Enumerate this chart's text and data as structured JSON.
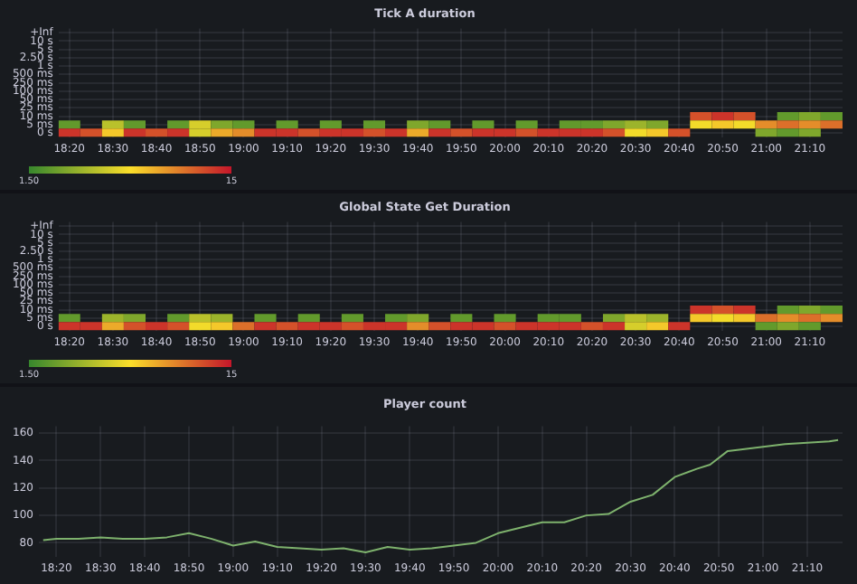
{
  "chart_data": [
    {
      "type": "heatmap",
      "title": "Tick A duration",
      "x": [
        18.3333,
        18.4167,
        18.5,
        18.5833,
        18.6667,
        18.75,
        18.8333,
        18.9167,
        19,
        19.0833,
        19.1667,
        19.25,
        19.3333,
        19.4167,
        19.5,
        19.5833,
        19.6667,
        19.75,
        19.8333,
        19.9167,
        20,
        20.0833,
        20.1667,
        20.25,
        20.3333,
        20.4167,
        20.5,
        20.5833,
        20.6667,
        20.75,
        20.8333,
        20.9167,
        21,
        21.0833,
        21.1667,
        21.25
      ],
      "y_categories": [
        "+Inf",
        "10 s",
        "5 s",
        "2.50 s",
        "1 s",
        "500 ms",
        "250 ms",
        "100 ms",
        "50 ms",
        "25 ms",
        "10 ms",
        "5 ms",
        "0 s"
      ],
      "cells": [
        [
          null,
          null,
          null,
          null,
          null,
          null,
          null,
          null,
          null,
          null,
          null,
          null,
          null,
          null,
          null,
          null,
          null,
          null,
          null,
          null,
          null,
          null,
          null,
          null,
          null,
          null,
          null,
          null,
          null,
          null,
          null,
          null,
          null,
          null,
          null,
          null
        ],
        [
          null,
          null,
          null,
          null,
          null,
          null,
          null,
          null,
          null,
          null,
          null,
          null,
          null,
          null,
          null,
          null,
          null,
          null,
          null,
          null,
          null,
          null,
          null,
          null,
          null,
          null,
          null,
          null,
          null,
          null,
          null,
          null,
          null,
          null,
          null,
          null
        ],
        [
          null,
          null,
          null,
          null,
          null,
          null,
          null,
          null,
          null,
          null,
          null,
          null,
          null,
          null,
          null,
          null,
          null,
          null,
          null,
          null,
          null,
          null,
          null,
          null,
          null,
          null,
          null,
          null,
          null,
          null,
          null,
          null,
          null,
          null,
          null,
          null
        ],
        [
          null,
          null,
          null,
          null,
          null,
          null,
          null,
          null,
          null,
          null,
          null,
          null,
          null,
          null,
          null,
          null,
          null,
          null,
          null,
          null,
          null,
          null,
          null,
          null,
          null,
          null,
          null,
          null,
          null,
          null,
          null,
          null,
          null,
          null,
          null,
          null
        ],
        [
          null,
          null,
          null,
          null,
          null,
          null,
          null,
          null,
          null,
          null,
          null,
          null,
          null,
          null,
          null,
          null,
          null,
          null,
          null,
          null,
          null,
          null,
          null,
          null,
          null,
          null,
          null,
          null,
          null,
          null,
          null,
          null,
          null,
          null,
          null,
          null
        ],
        [
          null,
          null,
          null,
          null,
          null,
          null,
          null,
          null,
          null,
          null,
          null,
          null,
          null,
          null,
          null,
          null,
          null,
          null,
          null,
          null,
          null,
          null,
          null,
          null,
          null,
          null,
          null,
          null,
          null,
          null,
          null,
          null,
          null,
          null,
          null,
          null
        ],
        [
          null,
          null,
          null,
          null,
          null,
          null,
          null,
          null,
          null,
          null,
          null,
          null,
          null,
          null,
          null,
          null,
          null,
          null,
          null,
          null,
          null,
          null,
          null,
          null,
          null,
          null,
          null,
          null,
          null,
          null,
          null,
          null,
          null,
          null,
          null,
          null
        ],
        [
          null,
          null,
          null,
          null,
          null,
          null,
          null,
          null,
          null,
          null,
          null,
          null,
          null,
          null,
          null,
          null,
          null,
          null,
          null,
          null,
          null,
          null,
          null,
          null,
          null,
          null,
          null,
          null,
          null,
          null,
          null,
          null,
          null,
          null,
          null,
          null
        ],
        [
          null,
          null,
          null,
          null,
          null,
          null,
          null,
          null,
          null,
          null,
          null,
          null,
          null,
          null,
          null,
          null,
          null,
          null,
          null,
          null,
          null,
          null,
          null,
          null,
          null,
          null,
          null,
          null,
          null,
          null,
          null,
          null,
          null,
          null,
          null,
          null
        ],
        [
          null,
          null,
          null,
          null,
          null,
          null,
          null,
          null,
          null,
          null,
          null,
          null,
          null,
          null,
          null,
          null,
          null,
          null,
          null,
          null,
          null,
          null,
          null,
          null,
          null,
          null,
          null,
          null,
          null,
          null,
          null,
          null,
          null,
          null,
          null,
          null
        ],
        [
          null,
          null,
          null,
          null,
          null,
          null,
          null,
          null,
          null,
          null,
          null,
          null,
          null,
          null,
          null,
          null,
          null,
          null,
          null,
          null,
          null,
          null,
          null,
          null,
          null,
          null,
          null,
          null,
          null,
          13,
          14,
          13,
          null,
          3,
          4,
          3
        ],
        [
          3,
          null,
          6,
          3,
          null,
          3,
          7,
          4,
          3,
          null,
          3,
          null,
          3,
          null,
          3,
          null,
          4,
          3,
          null,
          3,
          null,
          3,
          null,
          3,
          3,
          4,
          5,
          4,
          null,
          8,
          9,
          8,
          11,
          12,
          11,
          12
        ],
        [
          14,
          13,
          9,
          14,
          13,
          14,
          7,
          10,
          11,
          14,
          14,
          13,
          14,
          14,
          13,
          14,
          10,
          14,
          13,
          14,
          14,
          13,
          14,
          14,
          14,
          13,
          8,
          9,
          13,
          null,
          null,
          null,
          4,
          3,
          4,
          null
        ]
      ],
      "clim": [
        1.5,
        15
      ],
      "cticks": [
        {
          "value": 1.5,
          "label": "1.50"
        },
        15
      ],
      "xlim": [
        18.2917,
        21.2917
      ],
      "xticks": [
        {
          "value": 18.3333,
          "label": "18:20"
        },
        {
          "value": 18.5,
          "label": "18:30"
        },
        {
          "value": 18.6667,
          "label": "18:40"
        },
        {
          "value": 18.8333,
          "label": "18:50"
        },
        {
          "value": 19,
          "label": "19:00"
        },
        {
          "value": 19.1667,
          "label": "19:10"
        },
        {
          "value": 19.3333,
          "label": "19:20"
        },
        {
          "value": 19.5,
          "label": "19:30"
        },
        {
          "value": 19.6667,
          "label": "19:40"
        },
        {
          "value": 19.8333,
          "label": "19:50"
        },
        {
          "value": 20,
          "label": "20:00"
        },
        {
          "value": 20.1667,
          "label": "20:10"
        },
        {
          "value": 20.3333,
          "label": "20:20"
        },
        {
          "value": 20.5,
          "label": "20:30"
        },
        {
          "value": 20.6667,
          "label": "20:40"
        },
        {
          "value": 20.8333,
          "label": "20:50"
        },
        {
          "value": 21,
          "label": "21:00"
        },
        {
          "value": 21.1667,
          "label": "21:10"
        }
      ],
      "grid": true
    },
    {
      "type": "heatmap",
      "title": "Global State Get Duration",
      "x": [
        18.3333,
        18.4167,
        18.5,
        18.5833,
        18.6667,
        18.75,
        18.8333,
        18.9167,
        19,
        19.0833,
        19.1667,
        19.25,
        19.3333,
        19.4167,
        19.5,
        19.5833,
        19.6667,
        19.75,
        19.8333,
        19.9167,
        20,
        20.0833,
        20.1667,
        20.25,
        20.3333,
        20.4167,
        20.5,
        20.5833,
        20.6667,
        20.75,
        20.8333,
        20.9167,
        21,
        21.0833,
        21.1667,
        21.25
      ],
      "y_categories": [
        "+Inf",
        "10 s",
        "5 s",
        "2.50 s",
        "1 s",
        "500 ms",
        "250 ms",
        "100 ms",
        "50 ms",
        "25 ms",
        "10 ms",
        "5 ms",
        "0 s"
      ],
      "cells": [
        [
          null,
          null,
          null,
          null,
          null,
          null,
          null,
          null,
          null,
          null,
          null,
          null,
          null,
          null,
          null,
          null,
          null,
          null,
          null,
          null,
          null,
          null,
          null,
          null,
          null,
          null,
          null,
          null,
          null,
          null,
          null,
          null,
          null,
          null,
          null,
          null
        ],
        [
          null,
          null,
          null,
          null,
          null,
          null,
          null,
          null,
          null,
          null,
          null,
          null,
          null,
          null,
          null,
          null,
          null,
          null,
          null,
          null,
          null,
          null,
          null,
          null,
          null,
          null,
          null,
          null,
          null,
          null,
          null,
          null,
          null,
          null,
          null,
          null
        ],
        [
          null,
          null,
          null,
          null,
          null,
          null,
          null,
          null,
          null,
          null,
          null,
          null,
          null,
          null,
          null,
          null,
          null,
          null,
          null,
          null,
          null,
          null,
          null,
          null,
          null,
          null,
          null,
          null,
          null,
          null,
          null,
          null,
          null,
          null,
          null,
          null
        ],
        [
          null,
          null,
          null,
          null,
          null,
          null,
          null,
          null,
          null,
          null,
          null,
          null,
          null,
          null,
          null,
          null,
          null,
          null,
          null,
          null,
          null,
          null,
          null,
          null,
          null,
          null,
          null,
          null,
          null,
          null,
          null,
          null,
          null,
          null,
          null,
          null
        ],
        [
          null,
          null,
          null,
          null,
          null,
          null,
          null,
          null,
          null,
          null,
          null,
          null,
          null,
          null,
          null,
          null,
          null,
          null,
          null,
          null,
          null,
          null,
          null,
          null,
          null,
          null,
          null,
          null,
          null,
          null,
          null,
          null,
          null,
          null,
          null,
          null
        ],
        [
          null,
          null,
          null,
          null,
          null,
          null,
          null,
          null,
          null,
          null,
          null,
          null,
          null,
          null,
          null,
          null,
          null,
          null,
          null,
          null,
          null,
          null,
          null,
          null,
          null,
          null,
          null,
          null,
          null,
          null,
          null,
          null,
          null,
          null,
          null,
          null
        ],
        [
          null,
          null,
          null,
          null,
          null,
          null,
          null,
          null,
          null,
          null,
          null,
          null,
          null,
          null,
          null,
          null,
          null,
          null,
          null,
          null,
          null,
          null,
          null,
          null,
          null,
          null,
          null,
          null,
          null,
          null,
          null,
          null,
          null,
          null,
          null,
          null
        ],
        [
          null,
          null,
          null,
          null,
          null,
          null,
          null,
          null,
          null,
          null,
          null,
          null,
          null,
          null,
          null,
          null,
          null,
          null,
          null,
          null,
          null,
          null,
          null,
          null,
          null,
          null,
          null,
          null,
          null,
          null,
          null,
          null,
          null,
          null,
          null,
          null
        ],
        [
          null,
          null,
          null,
          null,
          null,
          null,
          null,
          null,
          null,
          null,
          null,
          null,
          null,
          null,
          null,
          null,
          null,
          null,
          null,
          null,
          null,
          null,
          null,
          null,
          null,
          null,
          null,
          null,
          null,
          null,
          null,
          null,
          null,
          null,
          null,
          null
        ],
        [
          null,
          null,
          null,
          null,
          null,
          null,
          null,
          null,
          null,
          null,
          null,
          null,
          null,
          null,
          null,
          null,
          null,
          null,
          null,
          null,
          null,
          null,
          null,
          null,
          null,
          null,
          null,
          null,
          null,
          null,
          null,
          null,
          null,
          null,
          null,
          null
        ],
        [
          null,
          null,
          null,
          null,
          null,
          null,
          null,
          null,
          null,
          null,
          null,
          null,
          null,
          null,
          null,
          null,
          null,
          null,
          null,
          null,
          null,
          null,
          null,
          null,
          null,
          null,
          null,
          null,
          null,
          14,
          13,
          14,
          null,
          3,
          4,
          3
        ],
        [
          3,
          null,
          5,
          4,
          null,
          3,
          6,
          5,
          null,
          3,
          null,
          3,
          null,
          3,
          null,
          3,
          4,
          null,
          3,
          null,
          3,
          null,
          3,
          3,
          null,
          4,
          6,
          5,
          null,
          9,
          8,
          9,
          12,
          11,
          12,
          11
        ],
        [
          14,
          14,
          10,
          13,
          14,
          13,
          8,
          9,
          12,
          14,
          13,
          14,
          14,
          13,
          14,
          14,
          11,
          13,
          14,
          14,
          13,
          14,
          14,
          14,
          13,
          14,
          7,
          9,
          14,
          null,
          null,
          null,
          3,
          4,
          3,
          null
        ]
      ],
      "clim": [
        1.5,
        15
      ],
      "cticks": [
        {
          "value": 1.5,
          "label": "1.50"
        },
        15
      ],
      "xlim": [
        18.2917,
        21.2917
      ],
      "xticks": [
        {
          "value": 18.3333,
          "label": "18:20"
        },
        {
          "value": 18.5,
          "label": "18:30"
        },
        {
          "value": 18.6667,
          "label": "18:40"
        },
        {
          "value": 18.8333,
          "label": "18:50"
        },
        {
          "value": 19,
          "label": "19:00"
        },
        {
          "value": 19.1667,
          "label": "19:10"
        },
        {
          "value": 19.3333,
          "label": "19:20"
        },
        {
          "value": 19.5,
          "label": "19:30"
        },
        {
          "value": 19.6667,
          "label": "19:40"
        },
        {
          "value": 19.8333,
          "label": "19:50"
        },
        {
          "value": 20,
          "label": "20:00"
        },
        {
          "value": 20.1667,
          "label": "20:10"
        },
        {
          "value": 20.3333,
          "label": "20:20"
        },
        {
          "value": 20.5,
          "label": "20:30"
        },
        {
          "value": 20.6667,
          "label": "20:40"
        },
        {
          "value": 20.8333,
          "label": "20:50"
        },
        {
          "value": 21,
          "label": "21:00"
        },
        {
          "value": 21.1667,
          "label": "21:10"
        }
      ],
      "grid": true
    },
    {
      "type": "line",
      "title": "Player count",
      "series": [
        {
          "color": "#7eb26d",
          "x": [
            18.2833,
            18.3333,
            18.4167,
            18.5,
            18.5833,
            18.6667,
            18.75,
            18.8333,
            18.9167,
            19,
            19.0833,
            19.1667,
            19.25,
            19.3333,
            19.4167,
            19.5,
            19.5833,
            19.6667,
            19.75,
            19.8333,
            19.9167,
            20,
            20.0833,
            20.1667,
            20.25,
            20.3333,
            20.4167,
            20.5,
            20.5833,
            20.6667,
            20.75,
            20.8,
            20.8667,
            20.9167,
            21,
            21.0833,
            21.1667,
            21.25,
            21.2833
          ],
          "values": [
            82,
            83,
            83,
            84,
            83,
            83,
            84,
            87,
            83,
            78,
            81,
            77,
            76,
            75,
            76,
            73,
            77,
            75,
            76,
            78,
            80,
            87,
            91,
            95,
            95,
            100,
            101,
            110,
            115,
            128,
            134,
            137,
            147,
            148,
            150,
            152,
            153,
            154,
            155
          ]
        }
      ],
      "xlim": [
        18.2667,
        21.3
      ],
      "ylim": [
        70,
        165
      ],
      "yticks": [
        80,
        100,
        120,
        140,
        160
      ],
      "xticks": [
        {
          "value": 18.3333,
          "label": "18:20"
        },
        {
          "value": 18.5,
          "label": "18:30"
        },
        {
          "value": 18.6667,
          "label": "18:40"
        },
        {
          "value": 18.8333,
          "label": "18:50"
        },
        {
          "value": 19,
          "label": "19:00"
        },
        {
          "value": 19.1667,
          "label": "19:10"
        },
        {
          "value": 19.3333,
          "label": "19:20"
        },
        {
          "value": 19.5,
          "label": "19:30"
        },
        {
          "value": 19.6667,
          "label": "19:40"
        },
        {
          "value": 19.8333,
          "label": "19:50"
        },
        {
          "value": 20,
          "label": "20:00"
        },
        {
          "value": 20.1667,
          "label": "20:10"
        },
        {
          "value": 20.3333,
          "label": "20:20"
        },
        {
          "value": 20.5,
          "label": "20:30"
        },
        {
          "value": 20.6667,
          "label": "20:40"
        },
        {
          "value": 20.8333,
          "label": "20:50"
        },
        {
          "value": 21,
          "label": "21:00"
        },
        {
          "value": 21.1667,
          "label": "21:10"
        }
      ],
      "grid": true
    }
  ]
}
